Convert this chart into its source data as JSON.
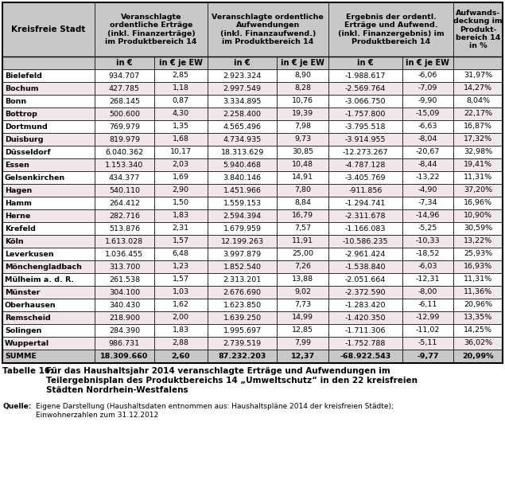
{
  "rows": [
    [
      "Bielefeld",
      "934.707",
      "2,85",
      "2.923.324",
      "8,90",
      "-1.988.617",
      "-6,06",
      "31,97%"
    ],
    [
      "Bochum",
      "427.785",
      "1,18",
      "2.997.549",
      "8,28",
      "-2.569.764",
      "-7,09",
      "14,27%"
    ],
    [
      "Bonn",
      "268.145",
      "0,87",
      "3.334.895",
      "10,76",
      "-3.066.750",
      "-9,90",
      "8,04%"
    ],
    [
      "Bottrop",
      "500.600",
      "4,30",
      "2.258.400",
      "19,39",
      "-1.757.800",
      "-15,09",
      "22,17%"
    ],
    [
      "Dortmund",
      "769.979",
      "1,35",
      "4.565.496",
      "7,98",
      "-3.795.518",
      "-6,63",
      "16,87%"
    ],
    [
      "Duisburg",
      "819.979",
      "1,68",
      "4.734.935",
      "9,73",
      "-3.914.955",
      "-8,04",
      "17,32%"
    ],
    [
      "Düsseldorf",
      "6.040.362",
      "10,17",
      "18.313.629",
      "30,85",
      "-12.273.267",
      "-20,67",
      "32,98%"
    ],
    [
      "Essen",
      "1.153.340",
      "2,03",
      "5.940.468",
      "10,48",
      "-4.787.128",
      "-8,44",
      "19,41%"
    ],
    [
      "Gelsenkirchen",
      "434.377",
      "1,69",
      "3.840.146",
      "14,91",
      "-3.405.769",
      "-13,22",
      "11,31%"
    ],
    [
      "Hagen",
      "540.110",
      "2,90",
      "1.451.966",
      "7,80",
      "-911.856",
      "-4,90",
      "37,20%"
    ],
    [
      "Hamm",
      "264.412",
      "1,50",
      "1.559.153",
      "8,84",
      "-1.294.741",
      "-7,34",
      "16,96%"
    ],
    [
      "Herne",
      "282.716",
      "1,83",
      "2.594.394",
      "16,79",
      "-2.311.678",
      "-14,96",
      "10,90%"
    ],
    [
      "Krefeld",
      "513.876",
      "2,31",
      "1.679.959",
      "7,57",
      "-1.166.083",
      "-5,25",
      "30,59%"
    ],
    [
      "Köln",
      "1.613.028",
      "1,57",
      "12.199.263",
      "11,91",
      "-10.586.235",
      "-10,33",
      "13,22%"
    ],
    [
      "Leverkusen",
      "1.036.455",
      "6,48",
      "3.997.879",
      "25,00",
      "-2.961.424",
      "-18,52",
      "25,93%"
    ],
    [
      "Mönchengladbach",
      "313.700",
      "1,23",
      "1.852.540",
      "7,26",
      "-1.538.840",
      "-6,03",
      "16,93%"
    ],
    [
      "Mülheim a. d. R.",
      "261.538",
      "1,57",
      "2.313.201",
      "13,88",
      "-2.051.664",
      "-12,31",
      "11,31%"
    ],
    [
      "Münster",
      "304.100",
      "1,03",
      "2.676.690",
      "9,02",
      "-2.372.590",
      "-8,00",
      "11,36%"
    ],
    [
      "Oberhausen",
      "340.430",
      "1,62",
      "1.623.850",
      "7,73",
      "-1.283.420",
      "-6,11",
      "20,96%"
    ],
    [
      "Remscheid",
      "218.900",
      "2,00",
      "1.639.250",
      "14,99",
      "-1.420.350",
      "-12,99",
      "13,35%"
    ],
    [
      "Solingen",
      "284.390",
      "1,83",
      "1.995.697",
      "12,85",
      "-1.711.306",
      "-11,02",
      "14,25%"
    ],
    [
      "Wuppertal",
      "986.731",
      "2,88",
      "2.739.519",
      "7,99",
      "-1.752.788",
      "-5,11",
      "36,02%"
    ],
    [
      "SUMME",
      "18.309.660",
      "2,60",
      "87.232.203",
      "12,37",
      "-68.922.543",
      "-9,77",
      "20,99%"
    ]
  ],
  "h1_texts": [
    "Kreisfreie Stadt",
    "Veranschlagte\nordentliche Erträge\n(inkl. Finanzertrage)\nim Produktbereich 14",
    "Veranschlagte ordentliche\nAufwendungen\n(inkl. Finanzaufwend.)\nim Produktbereich 14",
    "Ergebnis der ordentl.\nErträge und Aufwend.\n(inkl. Finanzergebnis) im\nProduktbereich 14",
    "Aufwands-\ndeckung im\nProdukt-\nbereich 14\nin %"
  ],
  "h2_texts": [
    "",
    "in €",
    "in € je EW",
    "in €",
    "in € je EW",
    "in €",
    "in € je EW",
    ""
  ],
  "header_bg": "#C8C8C8",
  "odd_bg": "#FFFFFF",
  "even_bg": "#F0E8E8",
  "summe_bg": "#C8C8C8",
  "caption_bold": "Tabelle 16:",
  "caption_text": "Für das Haushaltsjahr 2014 veranschlagte Erträge und Aufwendungen im\nTeilergebnisplan des Produktbereichs 14 „Umweltschutz“ in den 22 kreisfreien\nStädten Nordrhein-Westfalens",
  "source_bold": "Quelle:",
  "source_text": "Eigene Darstellung (Haushaltsdaten entnommen aus: Haushaltspläne 2014 der kreisfreien Städte);\nEinwohnerzahlen zum 31.12.2012",
  "figsize": [
    6.35,
    6.33
  ]
}
